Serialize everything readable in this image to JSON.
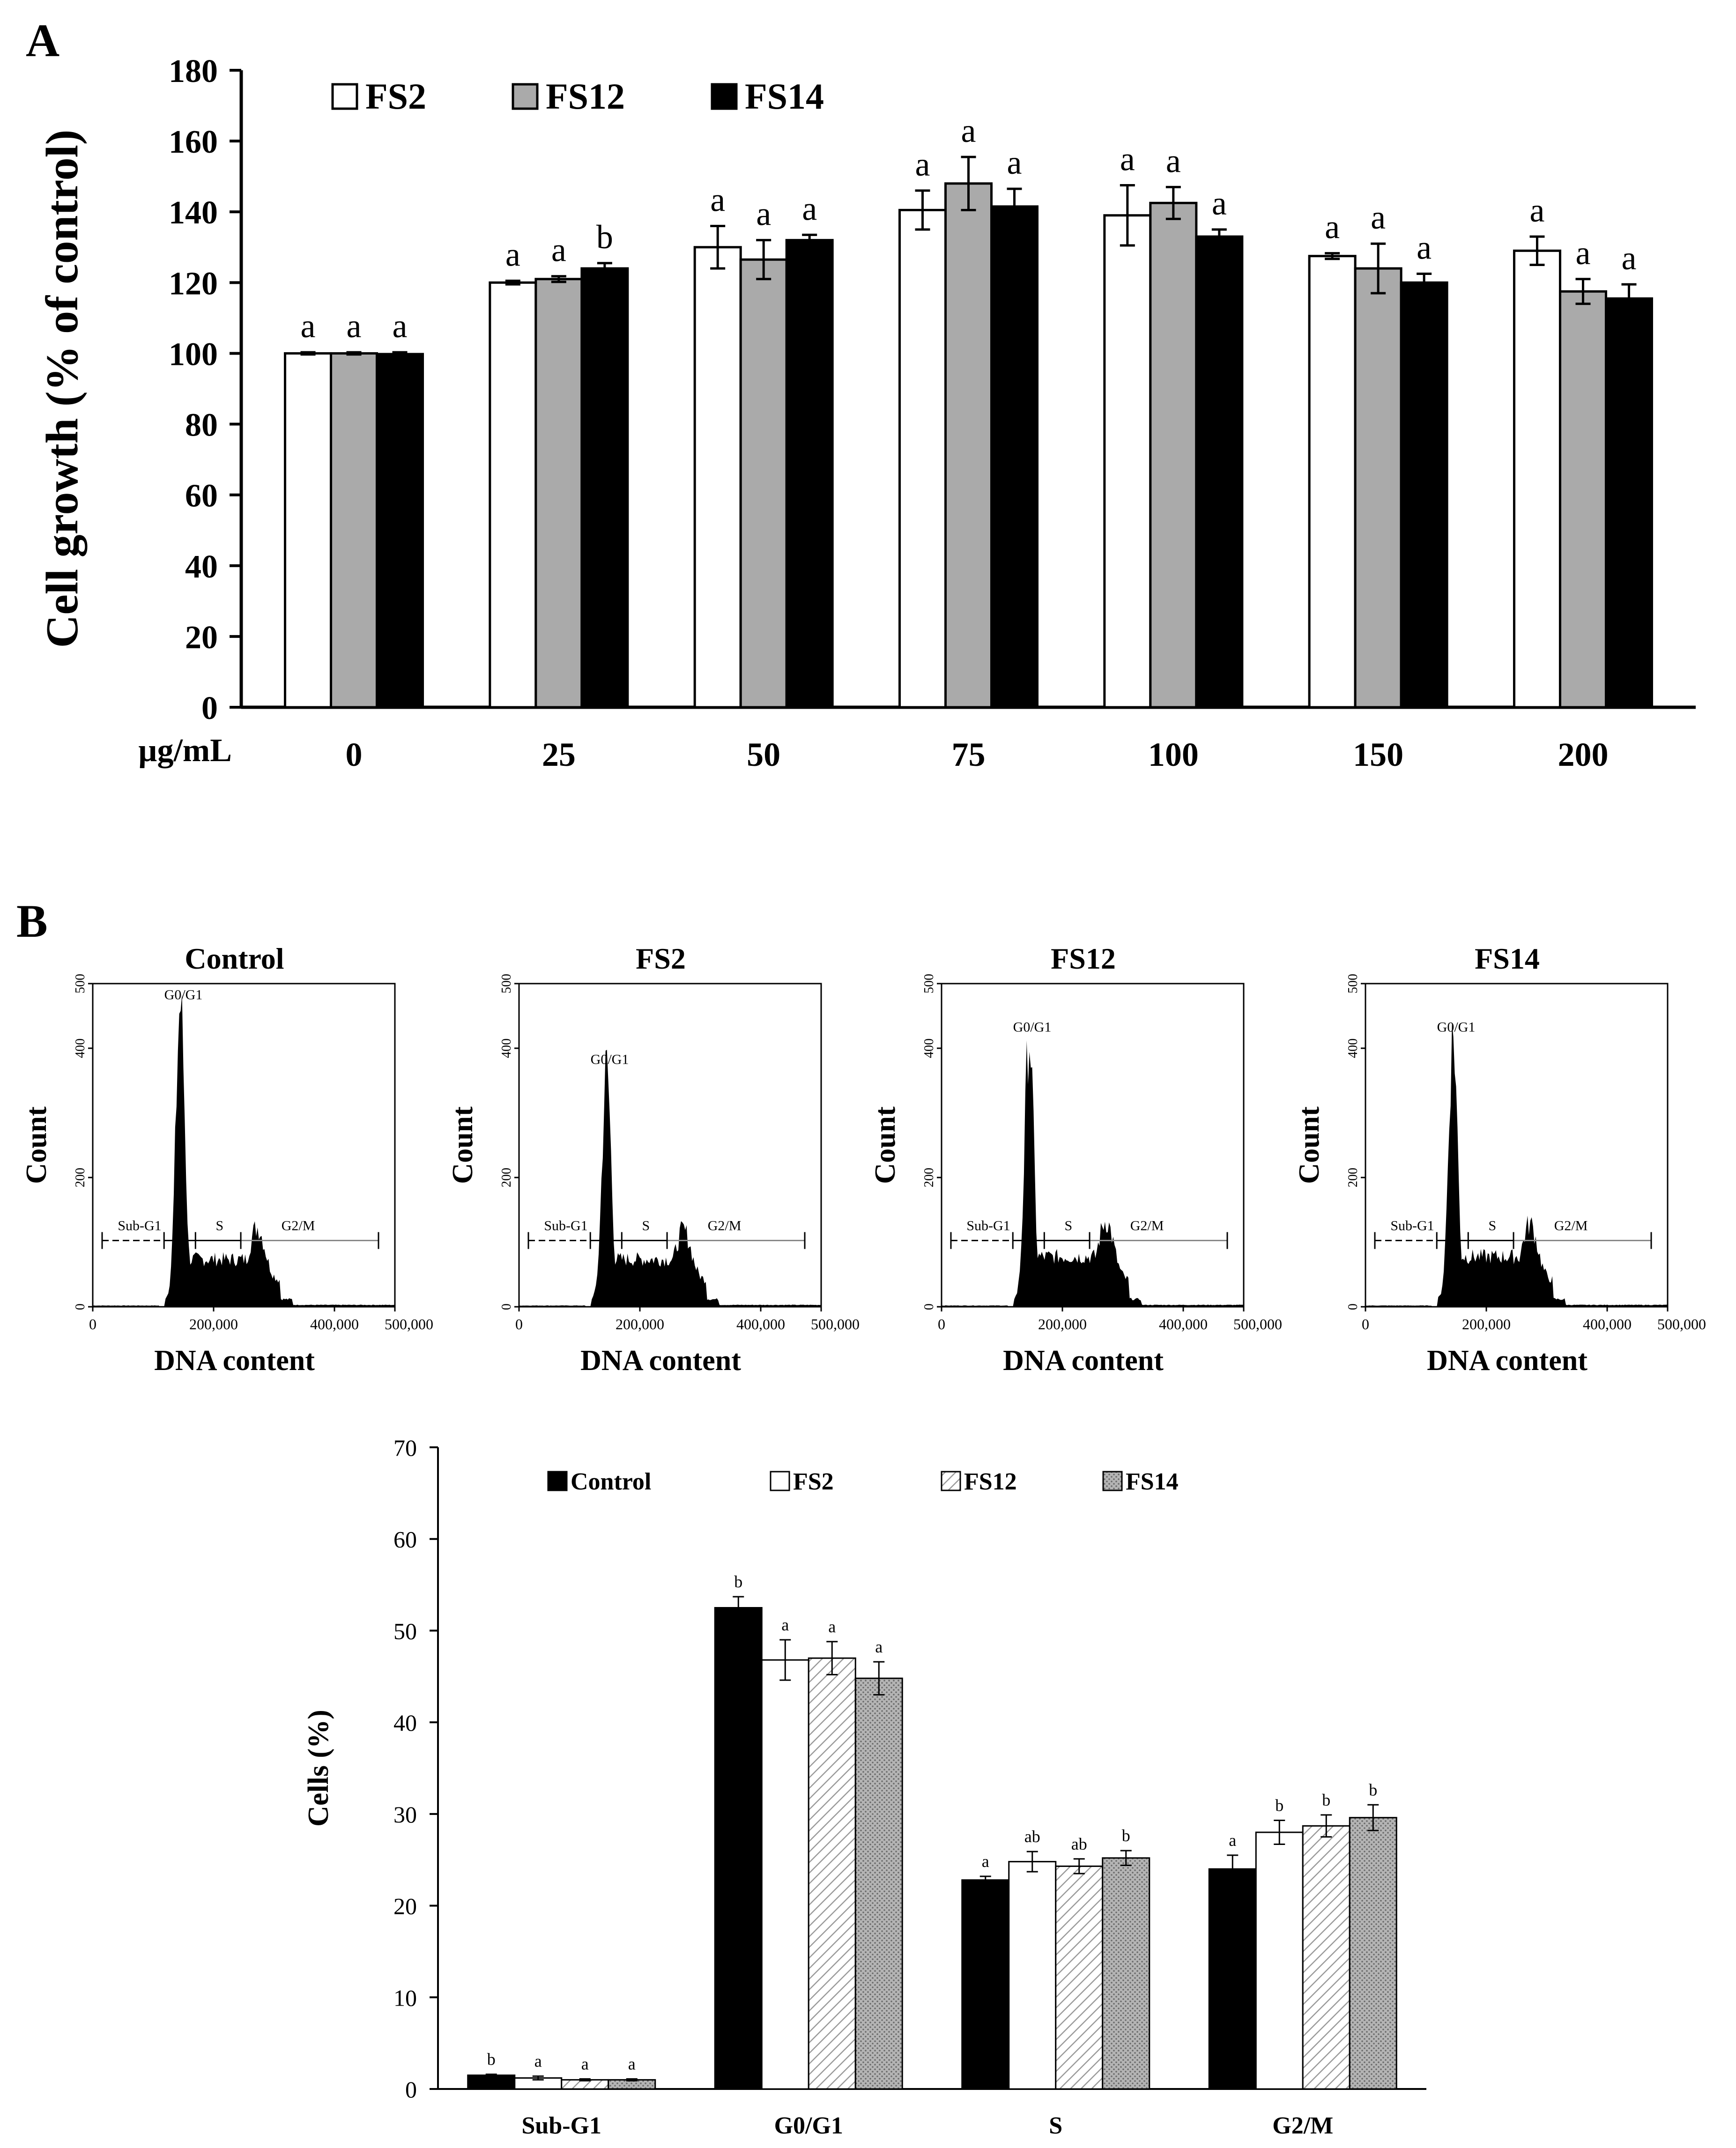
{
  "colors": {
    "white": "#ffffff",
    "gray": "#aaaaaa",
    "black": "#000000",
    "axis": "#000000"
  },
  "chart_data": [
    {
      "panel_label": "A",
      "type": "bar",
      "ylabel": "Cell growth (% of control)",
      "xunit_label": "µg/mL",
      "categories": [
        "0",
        "25",
        "50",
        "75",
        "100",
        "150",
        "200"
      ],
      "ylim": [
        0,
        180
      ],
      "yticks": [
        0,
        20,
        40,
        60,
        80,
        100,
        120,
        140,
        160,
        180
      ],
      "legend_position": "top-left",
      "series": [
        {
          "name": "FS2",
          "fill": "#ffffff",
          "values": [
            100,
            120,
            130,
            140.5,
            139,
            127.5,
            129
          ],
          "errors": [
            0.3,
            0.5,
            6,
            5.5,
            8.5,
            0.8,
            4
          ],
          "letters": [
            "a",
            "a",
            "a",
            "a",
            "a",
            "a",
            "a"
          ]
        },
        {
          "name": "FS12",
          "fill": "#aaaaaa",
          "values": [
            100,
            121,
            126.5,
            148,
            142.5,
            124,
            117.5
          ],
          "errors": [
            0.3,
            0.8,
            5.5,
            7.5,
            4.5,
            7,
            3.5
          ],
          "letters": [
            "a",
            "a",
            "a",
            "a",
            "a",
            "a",
            "a"
          ]
        },
        {
          "name": "FS14",
          "fill": "#000000",
          "values": [
            99.8,
            124,
            132,
            141.5,
            133,
            120,
            115.5
          ],
          "errors": [
            0.5,
            1.5,
            1.5,
            5,
            2,
            2.5,
            4
          ],
          "letters": [
            "a",
            "b",
            "a",
            "a",
            "a",
            "a",
            "a"
          ]
        }
      ]
    },
    {
      "panel_label": "B",
      "type": "histogram",
      "panels": [
        {
          "title": "Control",
          "g0_peak": 470,
          "s_level": 75,
          "g2_peak": 105
        },
        {
          "title": "FS2",
          "g0_peak": 370,
          "s_level": 75,
          "g2_peak": 100
        },
        {
          "title": "FS12",
          "g0_peak": 420,
          "s_level": 80,
          "g2_peak": 115
        },
        {
          "title": "FS14",
          "g0_peak": 420,
          "s_level": 80,
          "g2_peak": 110
        }
      ],
      "yticks": [
        0,
        200,
        400,
        500
      ],
      "xticks": [
        "0",
        "200,000",
        "400,000",
        "500,000"
      ],
      "xlim": [
        0,
        500000
      ],
      "ylim": [
        0,
        500
      ],
      "ylabel": "Count",
      "xlabel": "DNA content",
      "gates": {
        "sub_g1": "Sub-G1",
        "g0g1": "G0/G1",
        "s": "S",
        "g2m": "G2/M"
      }
    },
    {
      "type": "bar",
      "ylabel": "Cells (%)",
      "categories": [
        "Sub-G1",
        "G0/G1",
        "S",
        "G2/M"
      ],
      "ylim": [
        0,
        70
      ],
      "yticks": [
        0,
        10,
        20,
        30,
        40,
        50,
        60,
        70
      ],
      "legend_position": "top",
      "series": [
        {
          "name": "Control",
          "pattern": "solid-black",
          "values": [
            1.5,
            52.5,
            22.8,
            24
          ],
          "errors": [
            0.1,
            1.2,
            0.4,
            1.5
          ],
          "letters": [
            "b",
            "b",
            "a",
            "a"
          ]
        },
        {
          "name": "FS2",
          "pattern": "white",
          "values": [
            1.2,
            46.8,
            24.8,
            28
          ],
          "errors": [
            0.2,
            2.2,
            1.1,
            1.3
          ],
          "letters": [
            "a",
            "a",
            "ab",
            "b"
          ]
        },
        {
          "name": "FS12",
          "pattern": "hatched",
          "values": [
            1.0,
            47,
            24.3,
            28.7
          ],
          "errors": [
            0.1,
            1.8,
            0.8,
            1.2
          ],
          "letters": [
            "a",
            "a",
            "ab",
            "b"
          ]
        },
        {
          "name": "FS14",
          "pattern": "dotted",
          "values": [
            1.0,
            44.8,
            25.2,
            29.6
          ],
          "errors": [
            0.1,
            1.8,
            0.8,
            1.4
          ],
          "letters": [
            "a",
            "a",
            "b",
            "b"
          ]
        }
      ]
    }
  ]
}
